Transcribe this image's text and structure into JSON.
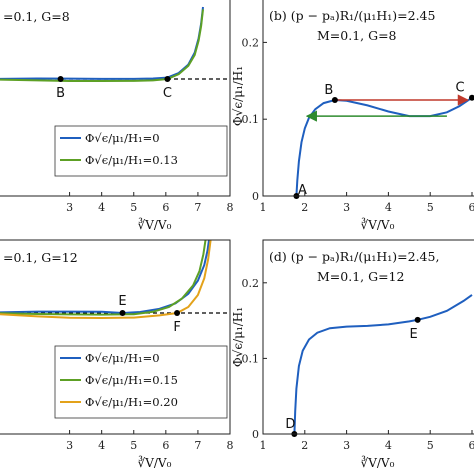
{
  "chart_data": [
    {
      "id": "a",
      "type": "line",
      "annotation_lines": [
        "=0.1, G=8"
      ],
      "xlim": [
        0.8,
        8
      ],
      "xticks": [
        3,
        4,
        5,
        6,
        7,
        8
      ],
      "xlabel": "∛V/V₀",
      "reference_line": {
        "style": "dashed",
        "color": "#000000"
      },
      "points": [
        {
          "label": "B",
          "x": 2.72
        },
        {
          "label": "C",
          "x": 6.05
        }
      ],
      "legend": {
        "placement": "lower-right"
      },
      "series": [
        {
          "name": "Φ√ϵ/μ₁/H₁=0",
          "color": "#1f5fbf",
          "x": [
            0.8,
            2,
            3,
            4,
            5,
            5.6,
            6.05,
            6.4,
            6.7,
            6.9,
            7.02,
            7.1,
            7.16
          ],
          "y": [
            0.01,
            0.04,
            0.03,
            0.01,
            0.01,
            0.04,
            0.12,
            0.5,
            1.2,
            2.2,
            3.4,
            4.6,
            6.0
          ]
        },
        {
          "name": "Φ√ϵ/μ₁/H₁=0.13",
          "color": "#5da025",
          "x": [
            0.8,
            2,
            3,
            4,
            5,
            5.6,
            6.05,
            6.4,
            6.7,
            6.9,
            7.02,
            7.1,
            7.16
          ],
          "y": [
            -0.05,
            -0.12,
            -0.17,
            -0.17,
            -0.16,
            -0.12,
            0.0,
            0.4,
            1.1,
            2.0,
            3.2,
            4.4,
            5.8
          ]
        }
      ]
    },
    {
      "id": "b",
      "type": "line",
      "title": "(b) (p − pₐ)R₁/(μ₁H₁)=2.45",
      "subtitle": "M=0.1, G=8",
      "xlim": [
        1,
        6
      ],
      "ylim": [
        0,
        0.25
      ],
      "xticks": [
        1,
        2,
        3,
        4,
        5,
        6
      ],
      "yticks": [
        0,
        0.1,
        0.2
      ],
      "xlabel": "∛V/V₀",
      "ylabel": "Φ√ϵ/μ₁/H₁",
      "points": [
        {
          "label": "A",
          "x": 1.8,
          "y": 0
        },
        {
          "label": "B",
          "x": 2.72,
          "y": 0.125
        },
        {
          "label": "C",
          "x": 6.0,
          "y": 0.128
        }
      ],
      "arrows": [
        {
          "color": "#c0392b",
          "from": [
            2.75,
            0.125
          ],
          "to": [
            5.9,
            0.125
          ]
        },
        {
          "color": "#2e8b2e",
          "from": [
            5.4,
            0.104
          ],
          "to": [
            2.05,
            0.104
          ]
        }
      ],
      "series": [
        {
          "name": "",
          "color": "#1f5fbf",
          "x": [
            1.8,
            1.82,
            1.86,
            1.92,
            2.0,
            2.1,
            2.25,
            2.45,
            2.72,
            3.0,
            3.5,
            4.0,
            4.5,
            5.0,
            5.4,
            5.7,
            6.0
          ],
          "y": [
            0,
            0.02,
            0.045,
            0.07,
            0.088,
            0.102,
            0.113,
            0.121,
            0.125,
            0.124,
            0.118,
            0.11,
            0.104,
            0.104,
            0.109,
            0.117,
            0.128
          ]
        }
      ]
    },
    {
      "id": "c",
      "type": "line",
      "annotation_lines": [
        "=0.1, G=12"
      ],
      "xlim": [
        0.8,
        8
      ],
      "xticks": [
        3,
        4,
        5,
        6,
        7,
        8
      ],
      "xlabel": "∛V/V₀",
      "reference_line": {
        "style": "dashed",
        "color": "#000000"
      },
      "points": [
        {
          "label": "E",
          "x": 4.65
        },
        {
          "label": "F",
          "x": 6.35
        }
      ],
      "legend": {
        "placement": "lower-right"
      },
      "series": [
        {
          "name": "Φ√ϵ/μ₁/H₁=0",
          "color": "#1f5fbf",
          "x": [
            0.8,
            2,
            3,
            4,
            4.65,
            5.2,
            5.8,
            6.3,
            6.7,
            7.0,
            7.2,
            7.3,
            7.36
          ],
          "y": [
            0.05,
            0.12,
            0.12,
            0.1,
            0.0,
            0.08,
            0.35,
            0.8,
            1.6,
            2.7,
            4.0,
            5.2,
            6.4
          ]
        },
        {
          "name": "Φ√ϵ/μ₁/H₁=0.15",
          "color": "#5da025",
          "x": [
            0.8,
            2,
            3,
            4,
            5,
            5.6,
            6.1,
            6.5,
            6.85,
            7.05,
            7.17,
            7.25
          ],
          "y": [
            -0.02,
            -0.08,
            -0.12,
            -0.13,
            -0.1,
            0.1,
            0.5,
            1.2,
            2.3,
            3.5,
            4.9,
            6.3
          ]
        },
        {
          "name": "Φ√ϵ/μ₁/H₁=0.20",
          "color": "#e3a21a",
          "x": [
            0.8,
            2,
            3,
            4,
            5,
            5.8,
            6.35,
            6.7,
            7.0,
            7.2,
            7.32,
            7.4
          ],
          "y": [
            -0.1,
            -0.28,
            -0.4,
            -0.42,
            -0.38,
            -0.2,
            0.0,
            0.5,
            1.5,
            2.9,
            4.5,
            6.2
          ]
        }
      ]
    },
    {
      "id": "d",
      "type": "line",
      "title": "(d) (p − pₐ)R₁/(μ₁H₁)=2.45,",
      "subtitle": "M=0.1, G=12",
      "xlim": [
        1,
        6
      ],
      "ylim": [
        0,
        0.25
      ],
      "xticks": [
        1,
        2,
        3,
        4,
        5,
        6
      ],
      "yticks": [
        0,
        0.1,
        0.2
      ],
      "xlabel": "∛V/V₀",
      "ylabel": "Φ√ϵ/μ₁/H₁",
      "points": [
        {
          "label": "D",
          "x": 1.75,
          "y": 0
        },
        {
          "label": "E",
          "x": 4.7,
          "y": 0.151
        }
      ],
      "series": [
        {
          "name": "",
          "color": "#1f5fbf",
          "x": [
            1.75,
            1.77,
            1.8,
            1.86,
            1.95,
            2.1,
            2.3,
            2.6,
            3.0,
            3.5,
            4.0,
            4.5,
            4.7,
            5.0,
            5.4,
            5.8,
            6.0
          ],
          "y": [
            0,
            0.03,
            0.06,
            0.09,
            0.11,
            0.125,
            0.134,
            0.14,
            0.142,
            0.143,
            0.145,
            0.149,
            0.151,
            0.155,
            0.163,
            0.176,
            0.184
          ]
        }
      ]
    }
  ]
}
